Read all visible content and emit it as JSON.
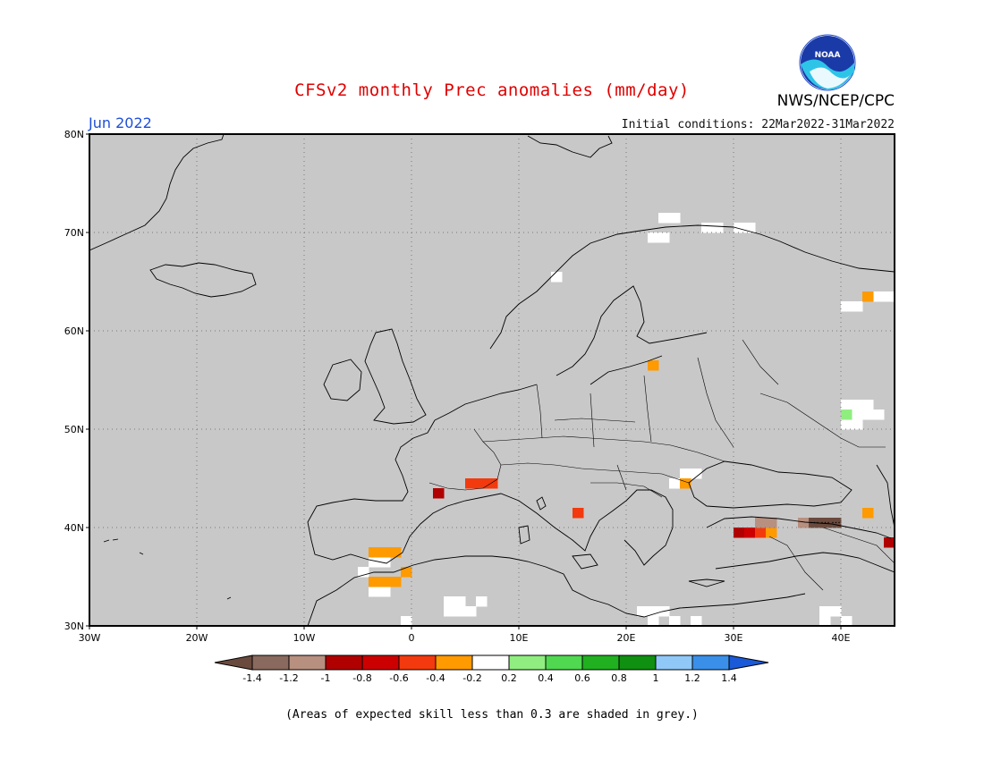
{
  "title": "CFSv2 monthly Prec anomalies (mm/day)",
  "month": "Jun 2022",
  "init_conditions": "Initial conditions: 22Mar2022-31Mar2022",
  "agency": "NWS/NCEP/CPC",
  "logo_text": "NOAA",
  "footnote": "(Areas of expected skill less than 0.3 are shaded in grey.)",
  "map": {
    "lon_range": [
      -30,
      45
    ],
    "lat_range": [
      30,
      80
    ],
    "lat_ticks": [
      {
        "v": 80,
        "label": "80N"
      },
      {
        "v": 70,
        "label": "70N"
      },
      {
        "v": 60,
        "label": "60N"
      },
      {
        "v": 50,
        "label": "50N"
      },
      {
        "v": 40,
        "label": "40N"
      },
      {
        "v": 30,
        "label": "30N"
      }
    ],
    "lon_ticks": [
      {
        "v": -30,
        "label": "30W"
      },
      {
        "v": -20,
        "label": "20W"
      },
      {
        "v": -10,
        "label": "10W"
      },
      {
        "v": 0,
        "label": "0"
      },
      {
        "v": 10,
        "label": "10E"
      },
      {
        "v": 20,
        "label": "20E"
      },
      {
        "v": 30,
        "label": "30E"
      },
      {
        "v": 40,
        "label": "40E"
      }
    ],
    "background_color": "#c8c8c8",
    "grid": "dotted"
  },
  "colorbar": {
    "colors": [
      "#6b4a3e",
      "#8a6a5e",
      "#b89080",
      "#b00000",
      "#cc0000",
      "#f23a0e",
      "#ff9a00",
      "#ffffff",
      "#90ee80",
      "#50d850",
      "#20b020",
      "#109010",
      "#90c8f8",
      "#3a90e8",
      "#1a5ad8"
    ],
    "labels": [
      "-1.4",
      "-1.2",
      "-1",
      "-0.8",
      "-0.6",
      "-0.4",
      "-0.2",
      "0.2",
      "0.4",
      "0.6",
      "0.8",
      "1",
      "1.2",
      "1.4"
    ]
  },
  "anomaly_cells": [
    {
      "lon": 2,
      "lat": 43,
      "value": -0.9
    },
    {
      "lon": 5,
      "lat": 44,
      "value": -0.5
    },
    {
      "lon": 6,
      "lat": 44,
      "value": -0.5
    },
    {
      "lon": 7,
      "lat": 44,
      "value": -0.5
    },
    {
      "lon": 15,
      "lat": 41,
      "value": -0.5
    },
    {
      "lon": -3,
      "lat": 37,
      "value": -0.3
    },
    {
      "lon": -2,
      "lat": 37,
      "value": -0.3
    },
    {
      "lon": -4,
      "lat": 37,
      "value": -0.3
    },
    {
      "lon": -3,
      "lat": 34,
      "value": -0.3
    },
    {
      "lon": -2,
      "lat": 34,
      "value": -0.3
    },
    {
      "lon": -4,
      "lat": 34,
      "value": -0.3
    },
    {
      "lon": -1,
      "lat": 35,
      "value": -0.3
    },
    {
      "lon": 22,
      "lat": 56,
      "value": -0.3
    },
    {
      "lon": 25,
      "lat": 44,
      "value": -0.3
    },
    {
      "lon": 42,
      "lat": 41,
      "value": -0.3
    },
    {
      "lon": 42,
      "lat": 63,
      "value": -0.3
    },
    {
      "lon": 30,
      "lat": 39,
      "value": -0.9
    },
    {
      "lon": 31,
      "lat": 39,
      "value": -0.7
    },
    {
      "lon": 32,
      "lat": 39,
      "value": -0.5
    },
    {
      "lon": 33,
      "lat": 39,
      "value": -0.3
    },
    {
      "lon": 32,
      "lat": 40,
      "value": -1.1
    },
    {
      "lon": 33,
      "lat": 40,
      "value": -1.1
    },
    {
      "lon": 36,
      "lat": 40,
      "value": -1.1
    },
    {
      "lon": 37,
      "lat": 40,
      "value": -1.5
    },
    {
      "lon": 38,
      "lat": 40,
      "value": -1.5
    },
    {
      "lon": 39,
      "lat": 40,
      "value": -1.5
    },
    {
      "lon": 40,
      "lat": 51,
      "value": 0.3
    },
    {
      "lon": 44,
      "lat": 38,
      "value": -0.9
    }
  ],
  "neutral_cells": [
    [
      -4,
      36
    ],
    [
      -3,
      36
    ],
    [
      -5,
      35
    ],
    [
      -4,
      33
    ],
    [
      -3,
      33
    ],
    [
      3,
      32
    ],
    [
      4,
      32
    ],
    [
      5,
      31
    ],
    [
      4,
      31
    ],
    [
      3,
      31
    ],
    [
      6,
      32
    ],
    [
      13,
      65
    ],
    [
      23,
      71
    ],
    [
      24,
      71
    ],
    [
      27,
      70
    ],
    [
      28,
      70
    ],
    [
      30,
      70
    ],
    [
      31,
      70
    ],
    [
      22,
      69
    ],
    [
      23,
      69
    ],
    [
      24,
      44
    ],
    [
      25,
      44
    ],
    [
      26,
      45
    ],
    [
      25,
      45
    ],
    [
      40,
      52
    ],
    [
      41,
      52
    ],
    [
      42,
      52
    ],
    [
      41,
      51
    ],
    [
      42,
      51
    ],
    [
      43,
      51
    ],
    [
      40,
      50
    ],
    [
      41,
      50
    ],
    [
      40,
      62
    ],
    [
      41,
      62
    ],
    [
      43,
      63
    ],
    [
      44,
      63
    ],
    [
      21,
      31
    ],
    [
      22,
      31
    ],
    [
      23,
      31
    ],
    [
      24,
      30
    ],
    [
      22,
      30
    ],
    [
      26,
      30
    ],
    [
      38,
      31
    ],
    [
      39,
      31
    ],
    [
      40,
      30
    ],
    [
      38,
      30
    ],
    [
      -1,
      30
    ]
  ]
}
